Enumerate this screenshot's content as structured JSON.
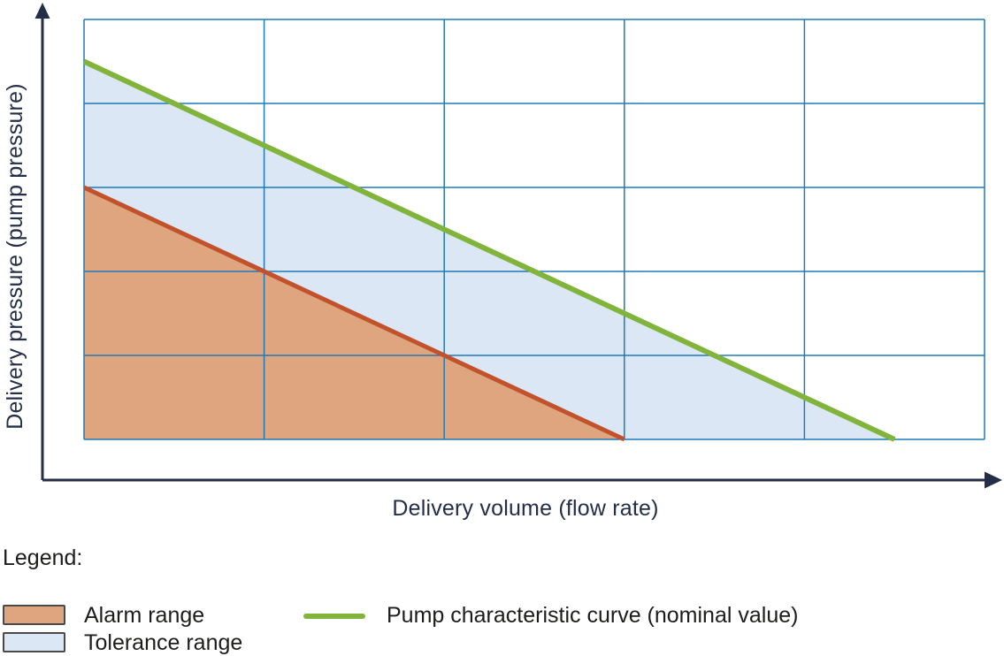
{
  "chart_data": {
    "type": "area",
    "title": "",
    "xlabel": "Delivery volume (flow rate)",
    "ylabel": "Delivery pressure (pump pressure)",
    "x_range": [
      0,
      5
    ],
    "y_range": [
      0,
      5
    ],
    "grid": true,
    "grid_divisions": {
      "x": 5,
      "y": 5
    },
    "grid_color": "#1e7ab8",
    "axis_color": "#242e48",
    "axis_tick_labels": [],
    "legend_position": "below-chart-bottom-left",
    "series": [
      {
        "name": "Alarm range",
        "kind": "area",
        "fill": "#dfa57f",
        "polygon": [
          [
            0,
            0
          ],
          [
            0,
            3
          ],
          [
            3,
            0
          ]
        ]
      },
      {
        "name": "Tolerance range",
        "kind": "area",
        "fill": "#dce7f5",
        "polygon": [
          [
            0,
            3
          ],
          [
            0,
            4.5
          ],
          [
            4.5,
            0
          ],
          [
            3,
            0
          ]
        ]
      },
      {
        "name": "Alarm range boundary",
        "kind": "line",
        "stroke": "#c2522c",
        "stroke_width": 5,
        "points": [
          [
            0,
            3
          ],
          [
            3,
            0
          ]
        ]
      },
      {
        "name": "Pump characteristic curve (nominal value)",
        "kind": "line",
        "stroke": "#80b43a",
        "stroke_width": 6,
        "points": [
          [
            0,
            4.5
          ],
          [
            4.5,
            0
          ]
        ]
      }
    ]
  },
  "legend": {
    "title": "Legend:",
    "swatch_border": "#4a4a48",
    "items": [
      {
        "type": "area",
        "color": "#dfa57f",
        "label": "Alarm range"
      },
      {
        "type": "area",
        "color": "#dce7f5",
        "label": "Tolerance range"
      },
      {
        "type": "line",
        "color": "#80b43a",
        "label": "Pump characteristic curve (nominal value)"
      }
    ]
  }
}
